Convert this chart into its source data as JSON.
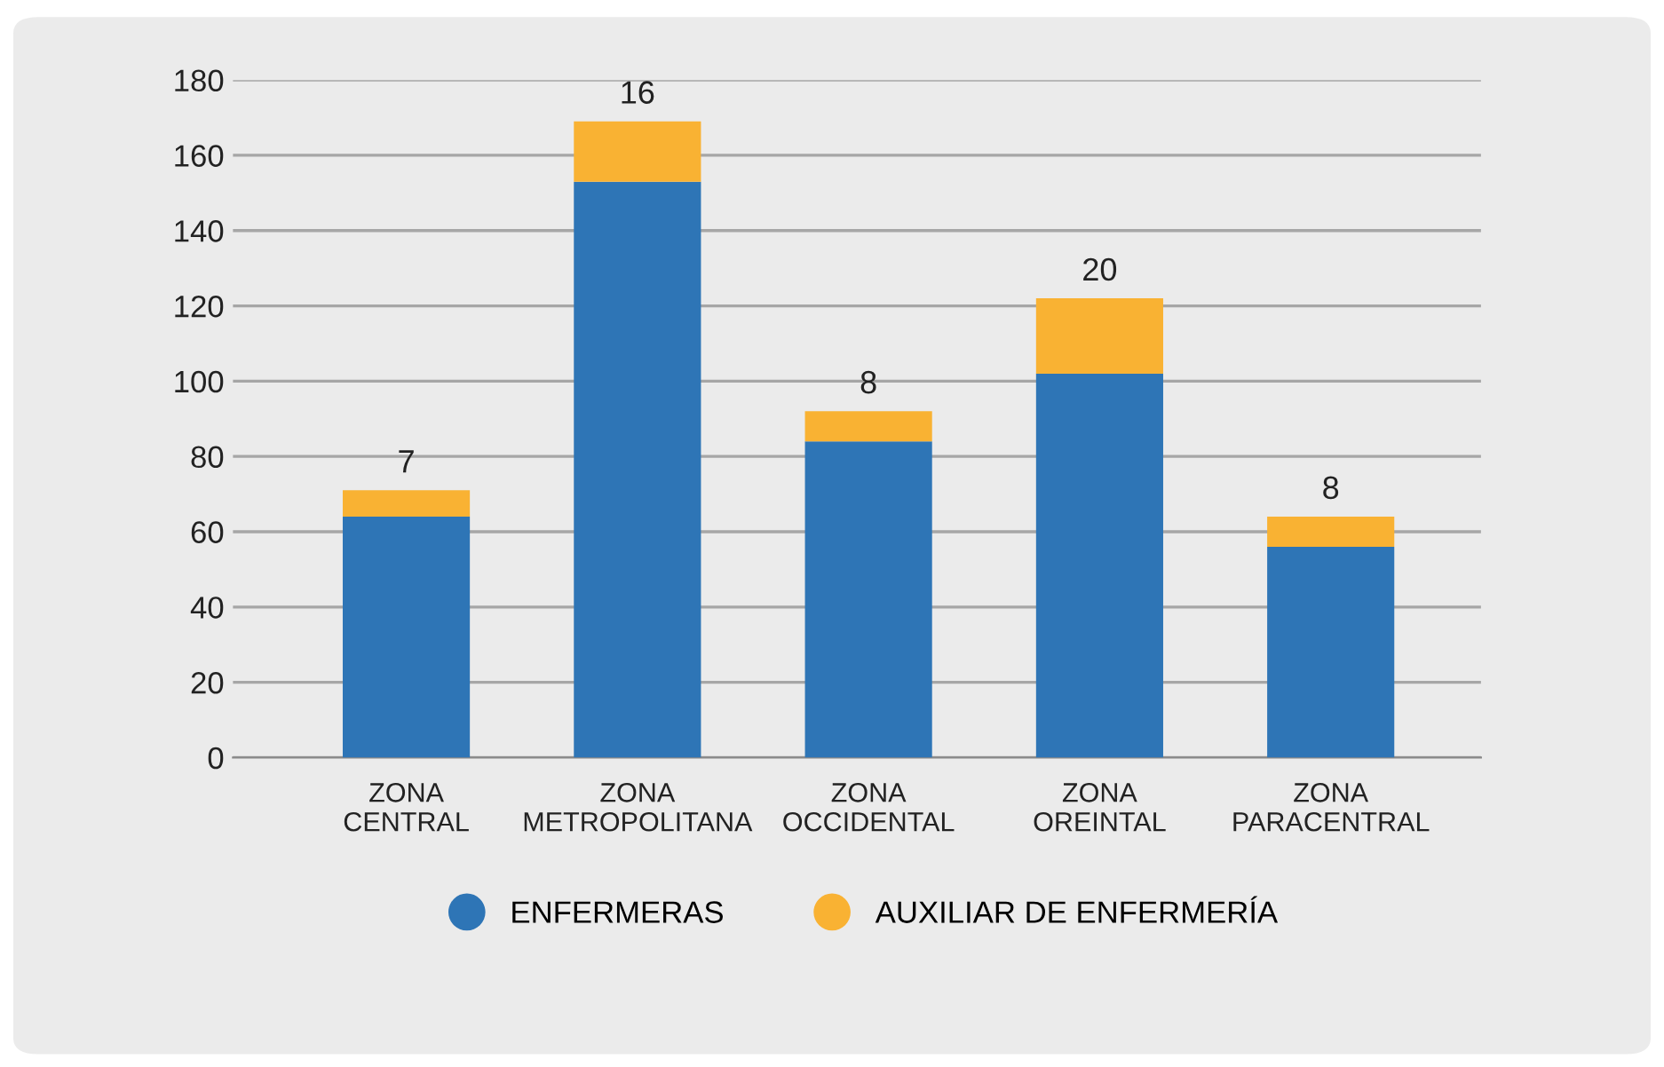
{
  "chart_data": {
    "type": "bar",
    "stacked": true,
    "categories": [
      "ZONA\nCENTRAL",
      "ZONA\nMETROPOLITANA",
      "ZONA\nOCCIDENTAL",
      "ZONA\nOREINTAL",
      "ZONA\nPARACENTRAL"
    ],
    "series": [
      {
        "name": "ENFERMERAS",
        "color": "#2e75b6",
        "values": [
          64,
          153,
          84,
          102,
          56
        ]
      },
      {
        "name": "AUXILIAR DE ENFERMERÍA",
        "color": "#f9b233",
        "values": [
          7,
          16,
          8,
          20,
          8
        ],
        "value_labels": [
          "7",
          "16",
          "8",
          "20",
          "8"
        ]
      }
    ],
    "ylim": [
      0,
      180
    ],
    "yticks": [
      0,
      20,
      40,
      60,
      80,
      100,
      120,
      140,
      160,
      180
    ],
    "grid": "y",
    "legend": "bottom"
  }
}
